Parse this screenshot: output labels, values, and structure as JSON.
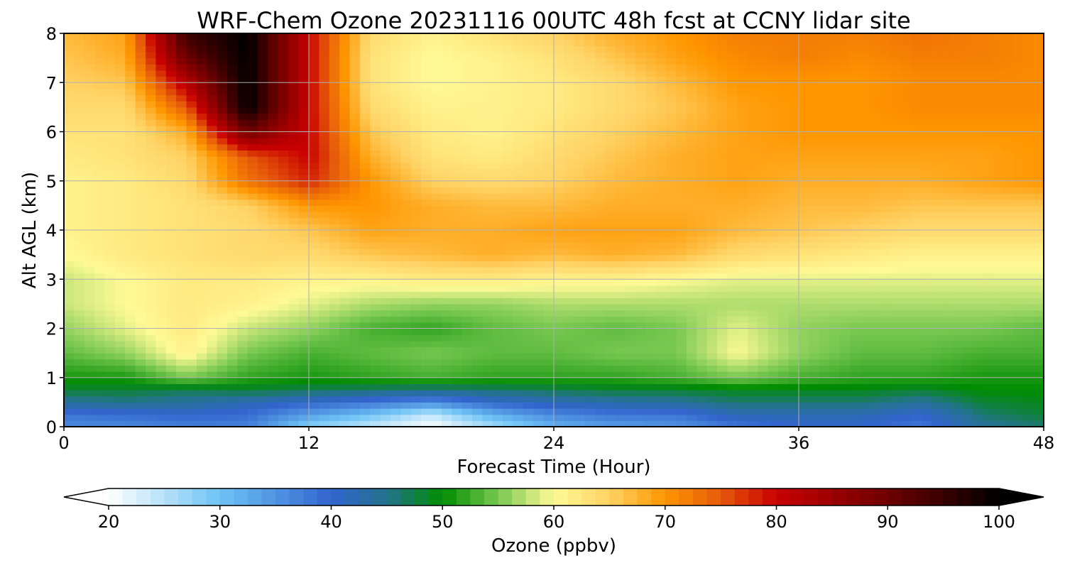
{
  "chart_data": {
    "type": "heatmap",
    "title": "WRF-Chem Ozone  20231116 00UTC 48h fcst at CCNY lidar site",
    "xlabel": "Forecast Time (Hour)",
    "ylabel": "Alt AGL (km)",
    "xlim": [
      0,
      48
    ],
    "ylim": [
      0,
      8
    ],
    "xticks": [
      0,
      12,
      24,
      36,
      48
    ],
    "yticks": [
      0,
      1,
      2,
      3,
      4,
      5,
      6,
      7,
      8
    ],
    "grid": true,
    "x": [
      0,
      3,
      6,
      9,
      12,
      15,
      18,
      21,
      24,
      27,
      30,
      33,
      36,
      39,
      42,
      45,
      48
    ],
    "y": [
      0,
      0.25,
      0.5,
      0.75,
      1,
      1.5,
      2,
      2.5,
      3,
      3.5,
      4,
      4.5,
      5,
      5.5,
      6,
      6.5,
      7,
      7.5,
      8
    ],
    "z": [
      [
        36,
        36,
        37,
        37,
        28,
        24,
        20,
        26,
        32,
        34,
        35,
        38,
        40,
        40,
        38,
        44,
        46
      ],
      [
        38,
        39,
        40,
        39,
        34,
        30,
        24,
        32,
        36,
        38,
        38,
        42,
        42,
        42,
        40,
        46,
        48
      ],
      [
        44,
        45,
        44,
        42,
        40,
        38,
        36,
        40,
        42,
        43,
        44,
        46,
        46,
        46,
        44,
        48,
        49
      ],
      [
        48,
        48,
        47,
        48,
        47,
        46,
        45,
        46,
        47,
        48,
        48,
        49,
        49,
        49,
        48,
        50,
        50
      ],
      [
        51,
        51,
        55,
        52,
        51,
        52,
        53,
        52,
        52,
        52,
        53,
        55,
        53,
        52,
        52,
        51,
        51
      ],
      [
        54,
        56,
        61,
        55,
        53,
        54,
        55,
        54,
        54,
        55,
        55,
        60,
        56,
        54,
        54,
        53,
        53
      ],
      [
        56,
        59,
        62,
        58,
        56,
        53,
        52,
        54,
        55,
        54,
        55,
        59,
        56,
        55,
        55,
        55,
        54
      ],
      [
        58,
        60,
        62,
        61,
        59,
        57,
        56,
        56,
        57,
        57,
        57,
        57,
        57,
        57,
        57,
        57,
        57
      ],
      [
        58,
        60,
        62,
        62,
        61,
        61,
        62,
        62,
        61,
        61,
        60,
        59,
        59,
        59,
        59,
        59,
        59
      ],
      [
        60,
        62,
        63,
        64,
        64,
        66,
        67,
        68,
        67,
        68,
        67,
        64,
        63,
        62,
        61,
        61,
        61
      ],
      [
        61,
        62,
        63,
        64,
        66,
        69,
        68,
        68,
        69,
        69,
        69,
        67,
        66,
        65,
        64,
        64,
        64
      ],
      [
        61,
        62,
        63,
        65,
        70,
        70,
        68,
        67,
        67,
        68,
        68,
        68,
        67,
        67,
        66,
        66,
        66
      ],
      [
        61,
        62,
        64,
        73,
        78,
        70,
        65,
        64,
        65,
        67,
        68,
        69,
        68,
        68,
        68,
        69,
        70
      ],
      [
        62,
        63,
        65,
        75,
        80,
        68,
        63,
        62,
        64,
        66,
        68,
        69,
        69,
        69,
        69,
        69,
        70
      ],
      [
        63,
        63,
        68,
        90,
        80,
        66,
        62,
        61,
        63,
        65,
        67,
        69,
        70,
        70,
        70,
        70,
        70
      ],
      [
        64,
        64,
        75,
        100,
        80,
        64,
        61,
        61,
        62,
        64,
        66,
        69,
        70,
        70,
        71,
        71,
        71
      ],
      [
        65,
        66,
        82,
        100,
        80,
        63,
        60,
        61,
        62,
        64,
        67,
        70,
        70,
        70,
        71,
        71,
        71
      ],
      [
        66,
        68,
        90,
        100,
        80,
        63,
        60,
        61,
        63,
        66,
        69,
        71,
        72,
        71,
        72,
        72,
        71
      ],
      [
        67,
        69,
        95,
        100,
        80,
        64,
        61,
        63,
        65,
        68,
        70,
        72,
        72,
        72,
        73,
        72,
        71
      ]
    ],
    "colorbar": {
      "label": "Ozone  (ppbv)",
      "min": 20,
      "max": 100,
      "ticks": [
        20,
        30,
        40,
        50,
        60,
        70,
        80,
        90,
        100
      ],
      "extend": "both"
    }
  }
}
